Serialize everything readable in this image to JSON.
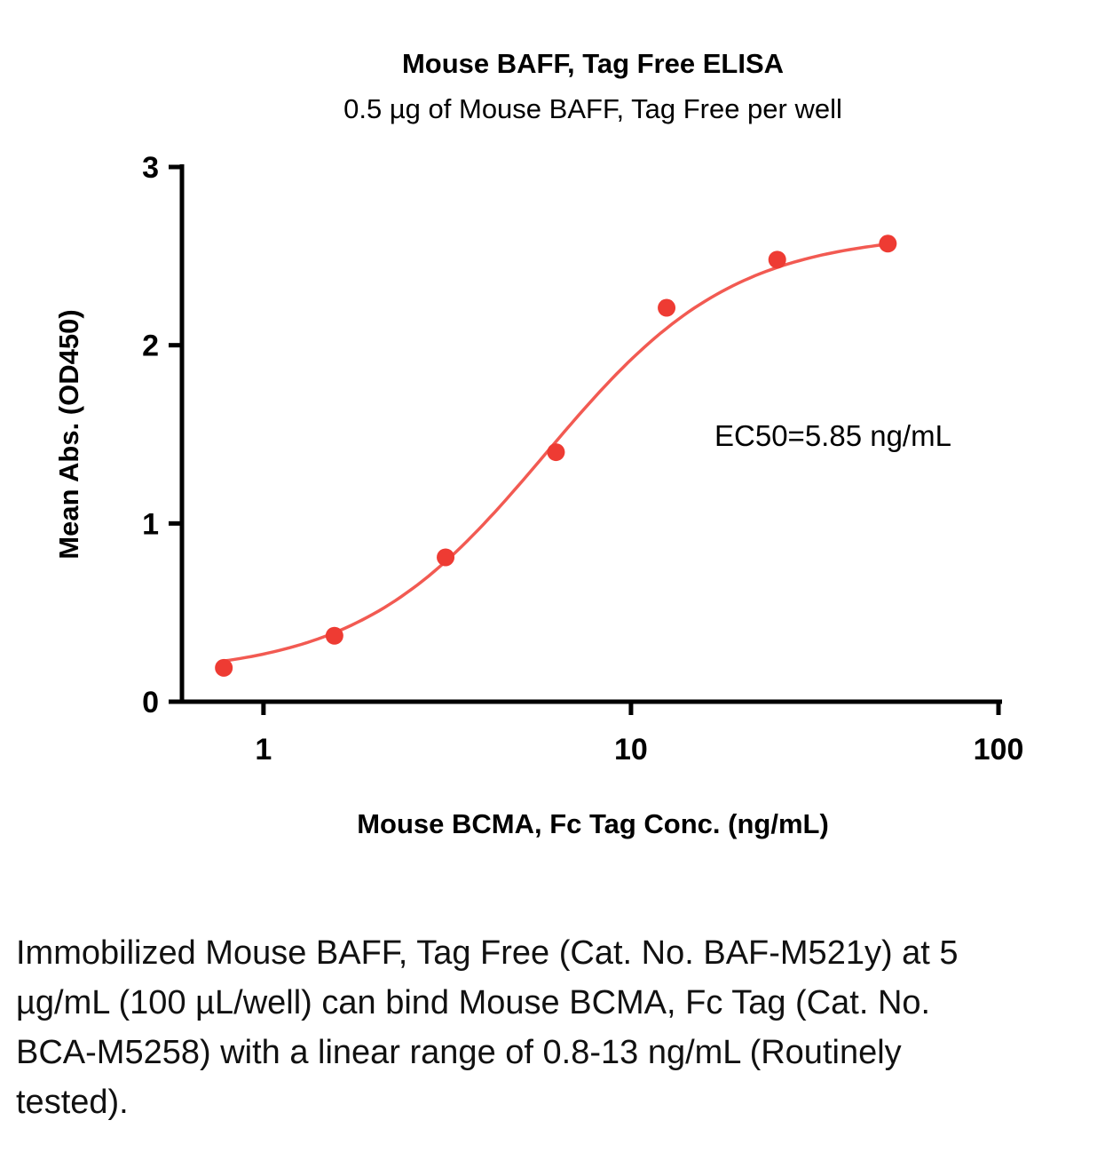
{
  "chart": {
    "title": "Mouse BAFF, Tag Free ELISA",
    "subtitle": "0.5 µg of Mouse BAFF, Tag Free per well",
    "xlabel": "Mouse BCMA, Fc Tag Conc. (ng/mL)",
    "ylabel": "Mean Abs. (OD450)",
    "annotation": "EC50=5.85 ng/mL"
  },
  "chart_data": {
    "type": "scatter",
    "x_scale": "log",
    "x": [
      0.78,
      1.56,
      3.13,
      6.25,
      12.5,
      25,
      50
    ],
    "y": [
      0.19,
      0.37,
      0.81,
      1.4,
      2.21,
      2.48,
      2.57
    ],
    "xlim": [
      0.6,
      100
    ],
    "ylim": [
      0,
      3
    ],
    "x_ticks": [
      1,
      10,
      100
    ],
    "y_ticks": [
      0,
      1,
      2,
      3
    ],
    "grid": false,
    "legend": "none",
    "fit": {
      "model": "4PL sigmoid",
      "bottom": 0.15,
      "top": 2.63,
      "ec50": 5.85,
      "hill": 1.7
    },
    "line_color": "#f25a52",
    "point_color": "#ee3b33",
    "axis_color": "#000000"
  },
  "caption": "Immobilized Mouse BAFF, Tag Free (Cat. No. BAF-M521y) at 5 µg/mL (100 µL/well) can bind Mouse BCMA, Fc Tag (Cat. No. BCA-M5258) with a linear range of 0.8-13 ng/mL (Routinely tested)."
}
